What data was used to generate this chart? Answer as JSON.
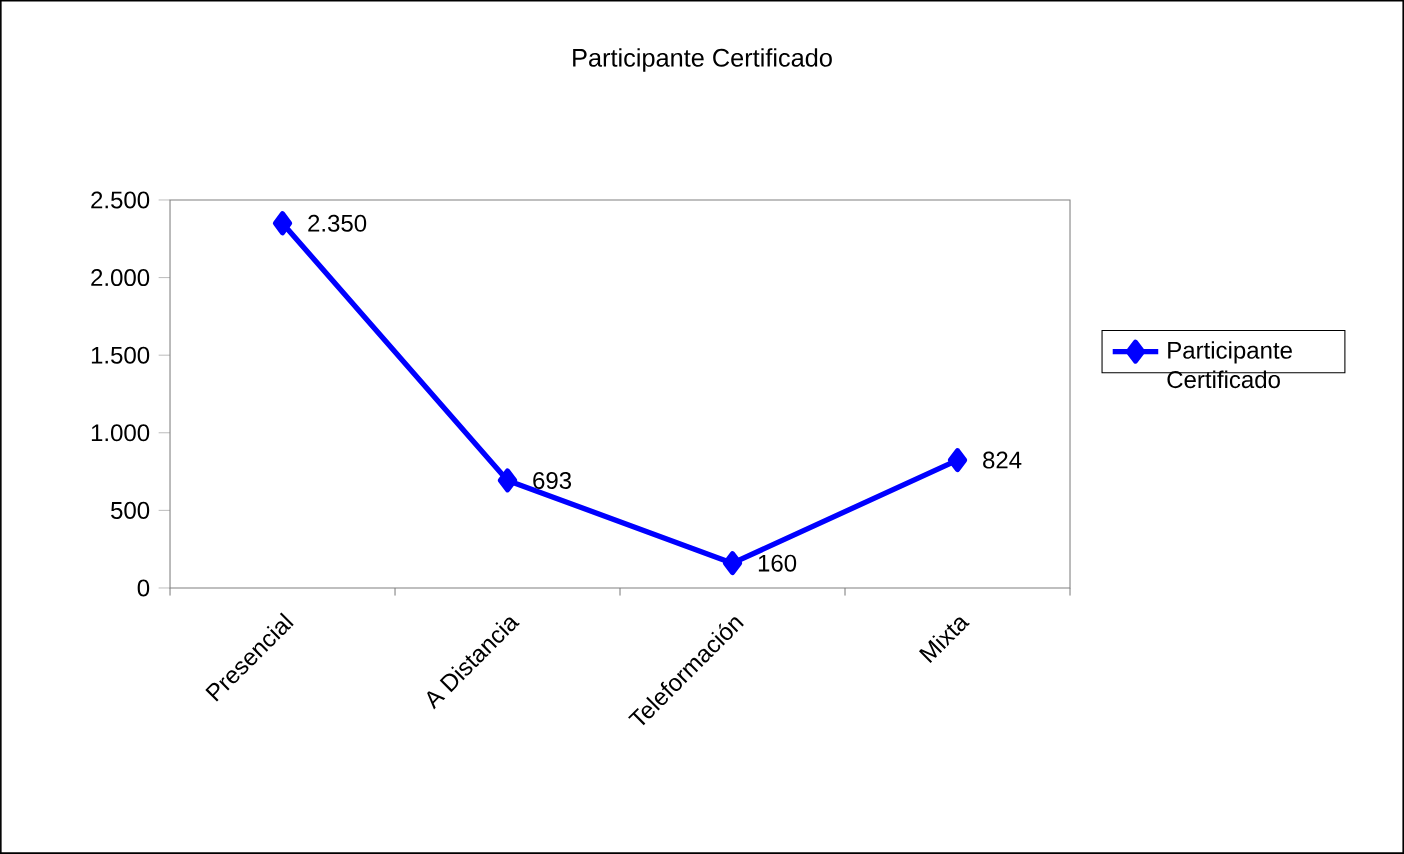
{
  "chart_data": {
    "type": "line",
    "title": "Participante Certificado",
    "categories": [
      "Presencial",
      "A Distancia",
      "Teleformación",
      "Mixta"
    ],
    "series": [
      {
        "name": "Participante Certificado",
        "color": "#0000ff",
        "values": [
          2350,
          693,
          160,
          824
        ],
        "value_labels": [
          "2.350",
          "693",
          "160",
          "824"
        ]
      }
    ],
    "ylim": [
      0,
      2500
    ],
    "yticks": [
      0,
      500,
      {
        "value": 1000,
        "label": "1.000"
      },
      {
        "value": 1500,
        "label": "1.500"
      },
      {
        "value": 2000,
        "label": "2.000"
      },
      {
        "value": 2500,
        "label": "2.500"
      }
    ],
    "legend": "right",
    "marker": "diamond",
    "line_style": "solid",
    "grid": false
  }
}
